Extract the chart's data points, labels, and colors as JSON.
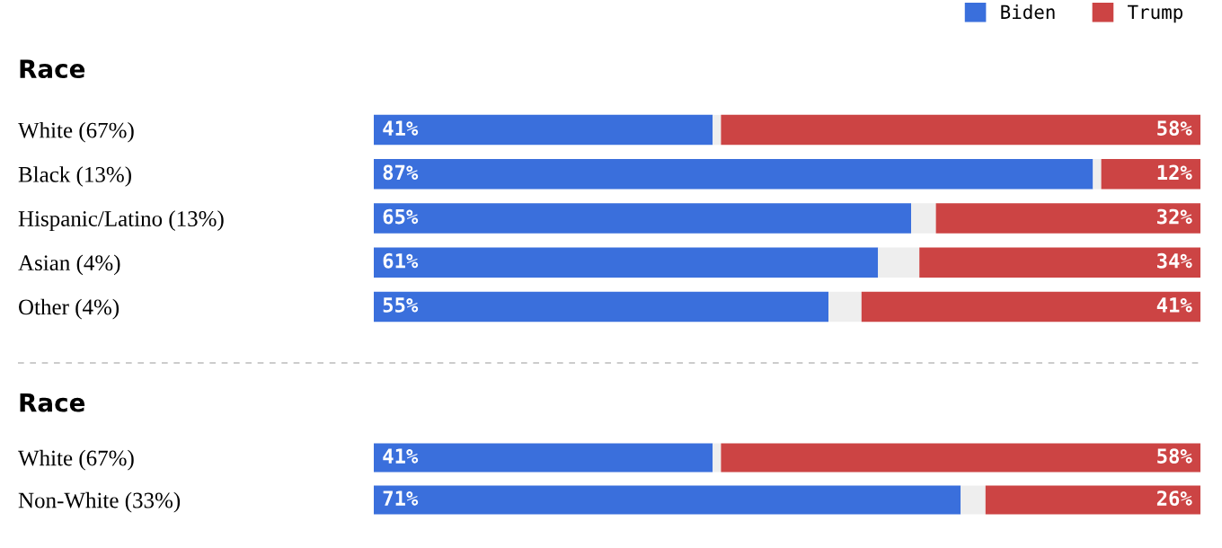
{
  "chart_data": [
    {
      "type": "bar",
      "orientation": "horizontal",
      "stacked": true,
      "title": "Race",
      "categories": [
        "White (67%)",
        "Black (13%)",
        "Hispanic/Latino (13%)",
        "Asian (4%)",
        "Other (4%)"
      ],
      "xlim": [
        0,
        100
      ],
      "tick_labels": "y",
      "legend": "top right",
      "grid": false,
      "series": [
        {
          "name": "Biden",
          "color": "#3a6fdc",
          "values": [
            41,
            87,
            65,
            61,
            55
          ],
          "value_labels": [
            "41%",
            "87%",
            "65%",
            "61%",
            "55%"
          ]
        },
        {
          "color": "#eeeeee",
          "values": [
            1,
            1,
            3,
            5,
            4
          ]
        },
        {
          "name": "Trump",
          "color": "#cc4444",
          "values": [
            58,
            12,
            32,
            34,
            41
          ],
          "value_labels": [
            "58%",
            "12%",
            "32%",
            "34%",
            "41%"
          ]
        }
      ]
    },
    {
      "type": "bar",
      "orientation": "horizontal",
      "stacked": true,
      "title": "Race",
      "categories": [
        "White (67%)",
        "Non-White (33%)"
      ],
      "xlim": [
        0,
        100
      ],
      "tick_labels": "y",
      "legend": false,
      "grid": false,
      "series": [
        {
          "color": "#3a6fdc",
          "values": [
            41,
            71
          ],
          "value_labels": [
            "41%",
            "71%"
          ]
        },
        {
          "color": "#eeeeee",
          "values": [
            1,
            3
          ]
        },
        {
          "color": "#cc4444",
          "values": [
            58,
            26
          ],
          "value_labels": [
            "58%",
            "26%"
          ]
        }
      ]
    }
  ]
}
